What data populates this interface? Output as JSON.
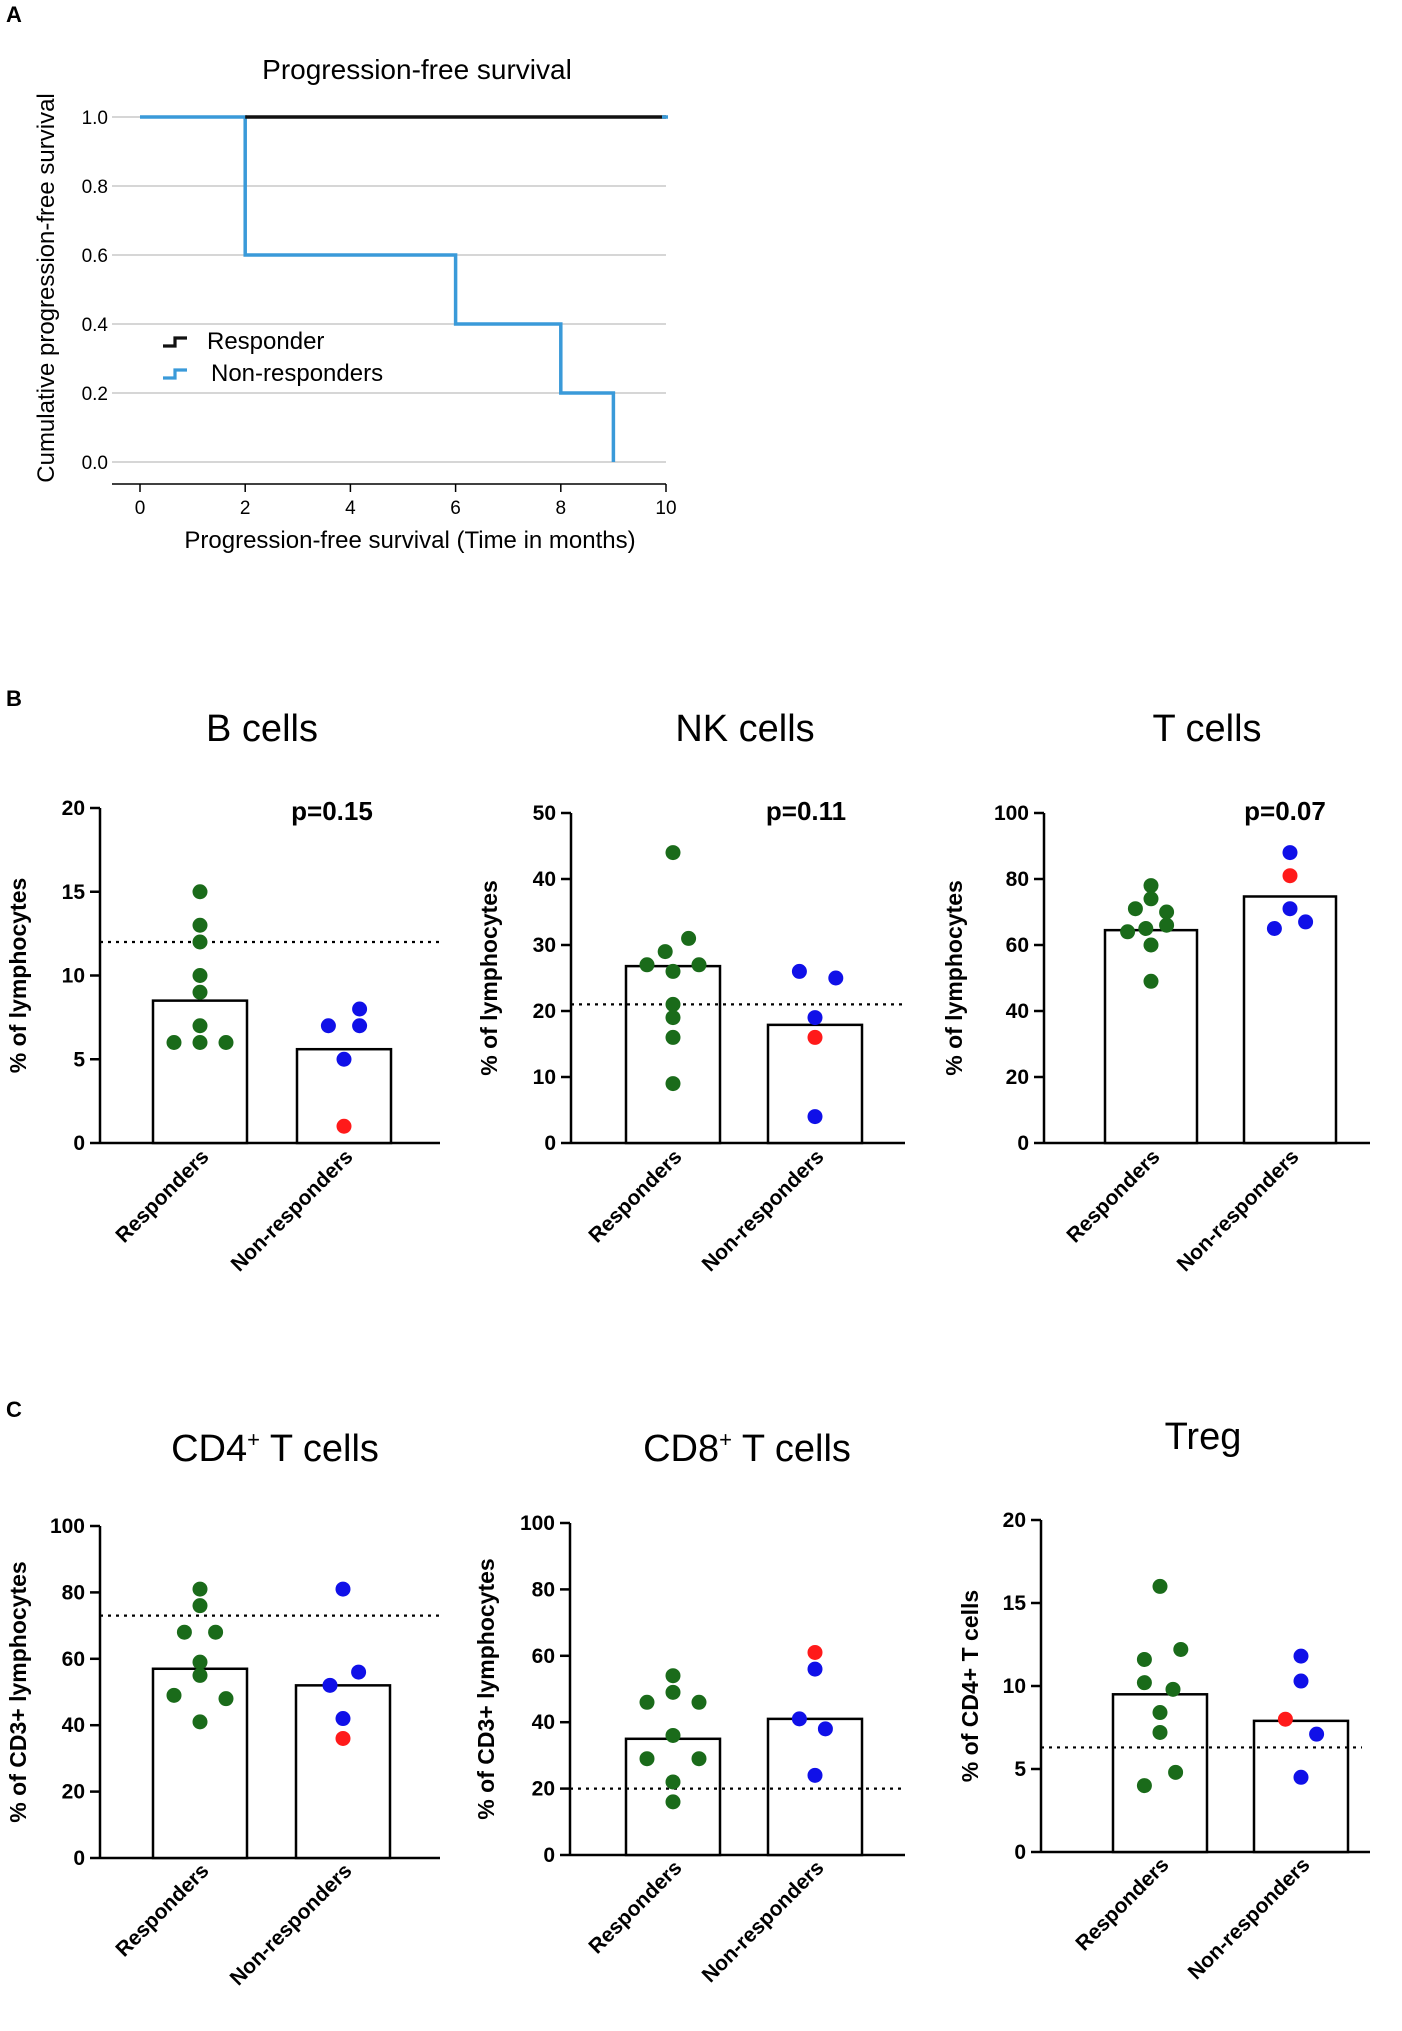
{
  "colors": {
    "responder_dot": "#1a6b1a",
    "nonresponder_dot": "#1010e8",
    "highlight_dot": "#ff1a1a",
    "km_responder": "#111111",
    "km_nonresponder": "#3a9ad9",
    "grid": "#c8c8c8"
  },
  "panels": {
    "a": "A",
    "b": "B",
    "c": "C"
  },
  "chart_data": [
    {
      "type": "line",
      "id": "km",
      "panel": "A",
      "title": "Progression-free survival",
      "xlabel": "Progression-free survival (Time in months)",
      "ylabel": "Cumulative progression-free survival",
      "xlim": [
        0,
        10
      ],
      "ylim": [
        0,
        1
      ],
      "xticks": [
        "0",
        "2",
        "4",
        "6",
        "8",
        "10"
      ],
      "yticks": [
        "0.0",
        "0.2",
        "0.4",
        "0.6",
        "0.8",
        "1.0"
      ],
      "grid": true,
      "legend_position": "lower-left",
      "series": [
        {
          "name": "Responder",
          "step": true,
          "x": [
            2,
            10
          ],
          "y": [
            1.0,
            1.0
          ]
        },
        {
          "name": "Non-responders",
          "step": true,
          "x": [
            0,
            2,
            2,
            6,
            6,
            8,
            8,
            9,
            9
          ],
          "y": [
            1.0,
            1.0,
            0.6,
            0.6,
            0.4,
            0.4,
            0.2,
            0.2,
            0.0
          ]
        }
      ]
    },
    {
      "type": "bar",
      "id": "bcells",
      "panel": "B",
      "title": "B cells",
      "ylabel": "% of lymphocytes",
      "ylim": [
        0,
        20
      ],
      "yticks": [
        "0",
        "5",
        "10",
        "15",
        "20"
      ],
      "categories": [
        "Responders",
        "Non-responders"
      ],
      "values": [
        8.5,
        5.6
      ],
      "reference_line": 12,
      "p_value": "p=0.15",
      "points": [
        [
          [
            15,
            0
          ],
          [
            13,
            0
          ],
          [
            12,
            0
          ],
          [
            10,
            0
          ],
          [
            9,
            0
          ],
          [
            7,
            0
          ],
          [
            6,
            -1
          ],
          [
            6,
            0
          ],
          [
            6,
            1
          ]
        ],
        [
          [
            8,
            0.6
          ],
          [
            7,
            -0.6
          ],
          [
            7,
            0.6
          ],
          [
            5,
            0
          ],
          [
            1,
            0
          ]
        ]
      ],
      "highlight": [
        null,
        4
      ]
    },
    {
      "type": "bar",
      "id": "nkcells",
      "panel": "B",
      "title": "NK cells",
      "ylabel": "% of lymphocytes",
      "ylim": [
        0,
        50
      ],
      "yticks": [
        "0",
        "10",
        "20",
        "30",
        "40",
        "50"
      ],
      "categories": [
        "Responders",
        "Non-responders"
      ],
      "values": [
        26.8,
        17.9
      ],
      "reference_line": 21,
      "p_value": "p=0.11",
      "points": [
        [
          [
            44,
            0
          ],
          [
            31,
            0.6
          ],
          [
            29,
            -0.3
          ],
          [
            27,
            -1
          ],
          [
            27,
            1
          ],
          [
            26,
            0
          ],
          [
            21,
            0
          ],
          [
            19,
            0
          ],
          [
            16,
            0
          ],
          [
            9,
            0
          ]
        ],
        [
          [
            26,
            -0.6
          ],
          [
            25,
            0.8
          ],
          [
            19,
            0
          ],
          [
            16,
            0
          ],
          [
            4,
            0
          ]
        ]
      ],
      "highlight": [
        null,
        3
      ]
    },
    {
      "type": "bar",
      "id": "tcells",
      "panel": "B",
      "title": "T cells",
      "ylabel": "% of lymphocytes",
      "ylim": [
        0,
        100
      ],
      "yticks": [
        "0",
        "20",
        "40",
        "60",
        "80",
        "100"
      ],
      "categories": [
        "Responders",
        "Non-responders"
      ],
      "values": [
        64.5,
        74.7
      ],
      "reference_line": null,
      "p_value": "p=0.07",
      "points": [
        [
          [
            78,
            0
          ],
          [
            74,
            0
          ],
          [
            71,
            -0.6
          ],
          [
            70,
            0.6
          ],
          [
            66,
            0.6
          ],
          [
            65,
            -0.2
          ],
          [
            64,
            -0.9
          ],
          [
            60,
            0
          ],
          [
            49,
            0
          ]
        ],
        [
          [
            88,
            0
          ],
          [
            81,
            0
          ],
          [
            71,
            0
          ],
          [
            67,
            0.6
          ],
          [
            65,
            -0.6
          ]
        ]
      ],
      "highlight": [
        null,
        1
      ]
    },
    {
      "type": "bar",
      "id": "cd4",
      "panel": "C",
      "title": "CD4",
      "title_sup": "+",
      "title_rest": " T cells",
      "ylabel": "% of CD3+ lymphocytes",
      "ylim": [
        0,
        100
      ],
      "yticks": [
        "0",
        "20",
        "40",
        "60",
        "80",
        "100"
      ],
      "categories": [
        "Responders",
        "Non-responders"
      ],
      "values": [
        57,
        52
      ],
      "reference_line": 73,
      "p_value": "",
      "points": [
        [
          [
            81,
            0
          ],
          [
            76,
            0
          ],
          [
            68,
            -0.6
          ],
          [
            68,
            0.6
          ],
          [
            59,
            0
          ],
          [
            55,
            0
          ],
          [
            49,
            -1
          ],
          [
            48,
            1
          ],
          [
            41,
            0
          ]
        ],
        [
          [
            81,
            0
          ],
          [
            56,
            0.6
          ],
          [
            52,
            -0.5
          ],
          [
            42,
            0
          ],
          [
            36,
            0
          ]
        ]
      ],
      "highlight": [
        null,
        4
      ]
    },
    {
      "type": "bar",
      "id": "cd8",
      "panel": "C",
      "title": "CD8",
      "title_sup": "+",
      "title_rest": " T cells",
      "ylabel": "% of CD3+ lymphocytes",
      "ylim": [
        0,
        100
      ],
      "yticks": [
        "0",
        "20",
        "40",
        "60",
        "80",
        "100"
      ],
      "categories": [
        "Responders",
        "Non-responders"
      ],
      "values": [
        35,
        41
      ],
      "reference_line": 20,
      "p_value": "",
      "points": [
        [
          [
            54,
            0
          ],
          [
            49,
            0
          ],
          [
            46,
            -1
          ],
          [
            46,
            1
          ],
          [
            36,
            0
          ],
          [
            29,
            -1
          ],
          [
            29,
            1
          ],
          [
            22,
            0
          ],
          [
            16,
            0
          ]
        ],
        [
          [
            61,
            0
          ],
          [
            56,
            0
          ],
          [
            41,
            -0.6
          ],
          [
            38,
            0.4
          ],
          [
            24,
            0
          ]
        ]
      ],
      "highlight": [
        null,
        0
      ]
    },
    {
      "type": "bar",
      "id": "treg",
      "panel": "C",
      "title": "Treg",
      "ylabel": "% of CD4+ T cells",
      "ylim": [
        0,
        20
      ],
      "yticks": [
        "0",
        "5",
        "10",
        "15",
        "20"
      ],
      "categories": [
        "Responders",
        "Non-responders"
      ],
      "values": [
        9.5,
        7.9
      ],
      "reference_line": 6.3,
      "p_value": "",
      "points": [
        [
          [
            16,
            0
          ],
          [
            12.2,
            0.8
          ],
          [
            11.6,
            -0.6
          ],
          [
            10.2,
            -0.6
          ],
          [
            9.8,
            0.5
          ],
          [
            8.4,
            0
          ],
          [
            7.2,
            0
          ],
          [
            4.8,
            0.6
          ],
          [
            4.0,
            -0.6
          ]
        ],
        [
          [
            11.8,
            0
          ],
          [
            10.3,
            0
          ],
          [
            8.0,
            -0.6
          ],
          [
            7.1,
            0.6
          ],
          [
            4.5,
            0
          ]
        ]
      ],
      "highlight": [
        null,
        2
      ]
    }
  ]
}
